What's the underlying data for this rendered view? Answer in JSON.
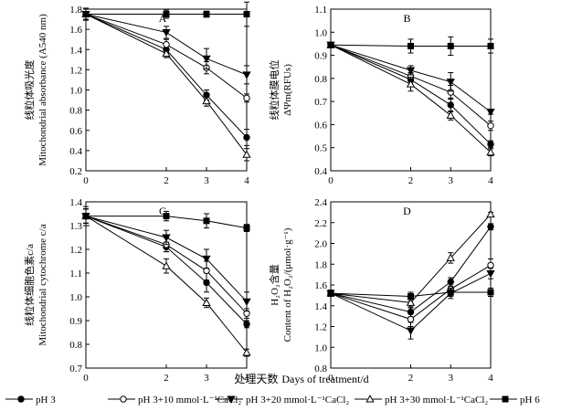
{
  "figure": {
    "x_title_cn": "处理天数",
    "x_title_en": "Days of treatment/d"
  },
  "legend": [
    {
      "key": "s1",
      "label": "pH 3",
      "marker": "circle-filled"
    },
    {
      "key": "s2",
      "label": "pH 3+10 mmol·L⁻¹CaCl₂",
      "marker": "circle-open"
    },
    {
      "key": "s3",
      "label": "pH 3+20 mmol·L⁻¹CaCl₂",
      "marker": "triangle-down-filled"
    },
    {
      "key": "s4",
      "label": "pH 3+30 mmol·L⁻¹CaCl₂",
      "marker": "triangle-up-open"
    },
    {
      "key": "s5",
      "label": "pH 6",
      "marker": "square-filled"
    }
  ],
  "chart_data": [
    {
      "id": "A",
      "type": "line",
      "title": "A",
      "ylabel_cn": "线粒体吸光度",
      "ylabel_en": "Mitochondrial absorbance (A540 nm)",
      "x": [
        0,
        2,
        3,
        4
      ],
      "xlim": [
        0,
        4
      ],
      "ylim": [
        0.2,
        1.8
      ],
      "yticks": [
        0.2,
        0.4,
        0.6,
        0.8,
        1.0,
        1.2,
        1.4,
        1.6,
        1.8
      ],
      "ytick_labels": [
        "0.2",
        "0.4",
        "0.6",
        "0.8",
        "1.0",
        "1.2",
        "1.4",
        "1.6",
        "1.8"
      ],
      "xtick_labels": [
        "0",
        "2",
        "3",
        "4"
      ],
      "series": [
        {
          "key": "s1",
          "name": "pH 3",
          "values": [
            1.75,
            1.4,
            0.95,
            0.53
          ],
          "errors": [
            0.05,
            0.04,
            0.05,
            0.08
          ]
        },
        {
          "key": "s2",
          "name": "pH 3+10 mmol·L⁻¹CaCl₂",
          "values": [
            1.75,
            1.45,
            1.22,
            0.92
          ],
          "errors": [
            0.05,
            0.05,
            0.06,
            0.04
          ]
        },
        {
          "key": "s3",
          "name": "pH 3+20 mmol·L⁻¹CaCl₂",
          "values": [
            1.75,
            1.57,
            1.31,
            1.15
          ],
          "errors": [
            0.05,
            0.06,
            0.1,
            0.09
          ]
        },
        {
          "key": "s4",
          "name": "pH 3+30 mmol·L⁻¹CaCl₂",
          "values": [
            1.75,
            1.36,
            0.89,
            0.36
          ],
          "errors": [
            0.05,
            0.04,
            0.05,
            0.06
          ]
        },
        {
          "key": "s5",
          "name": "pH 6",
          "values": [
            1.75,
            1.75,
            1.75,
            1.75
          ],
          "errors": [
            0.06,
            0.04,
            0.03,
            0.12
          ]
        }
      ]
    },
    {
      "id": "B",
      "type": "line",
      "title": "B",
      "ylabel_cn": "线粒体膜电位",
      "ylabel_en": "ΔΨm(RFUs)",
      "x": [
        0,
        2,
        3,
        4
      ],
      "xlim": [
        0,
        4
      ],
      "ylim": [
        0.4,
        1.1
      ],
      "yticks": [
        0.4,
        0.5,
        0.6,
        0.7,
        0.8,
        0.9,
        1.0,
        1.1
      ],
      "ytick_labels": [
        "0.4",
        "0.5",
        "0.6",
        "0.7",
        "0.8",
        "0.9",
        "1.0",
        "1.1"
      ],
      "xtick_labels": [
        "0",
        "2",
        "3",
        "4"
      ],
      "series": [
        {
          "key": "s1",
          "name": "pH 3",
          "values": [
            0.945,
            0.795,
            0.685,
            0.515
          ],
          "errors": [
            0.01,
            0.03,
            0.03,
            0.015
          ]
        },
        {
          "key": "s2",
          "name": "pH 3+10 mmol·L⁻¹CaCl₂",
          "values": [
            0.945,
            0.81,
            0.74,
            0.595
          ],
          "errors": [
            0.01,
            0.03,
            0.03,
            0.02
          ]
        },
        {
          "key": "s3",
          "name": "pH 3+20 mmol·L⁻¹CaCl₂",
          "values": [
            0.945,
            0.835,
            0.785,
            0.655
          ],
          "errors": [
            0.01,
            0.02,
            0.04,
            0.01
          ]
        },
        {
          "key": "s4",
          "name": "pH 3+30 mmol·L⁻¹CaCl₂",
          "values": [
            0.945,
            0.775,
            0.64,
            0.48
          ],
          "errors": [
            0.01,
            0.03,
            0.02,
            0.015
          ]
        },
        {
          "key": "s5",
          "name": "pH 6",
          "values": [
            0.945,
            0.94,
            0.94,
            0.94
          ],
          "errors": [
            0.01,
            0.03,
            0.04,
            0.03
          ]
        }
      ]
    },
    {
      "id": "C",
      "type": "line",
      "title": "C",
      "ylabel_cn": "线粒体细胞色素c/a",
      "ylabel_en": "Mitochondrial cytochrome c/a",
      "x": [
        0,
        2,
        3,
        4
      ],
      "xlim": [
        0,
        4
      ],
      "ylim": [
        0.7,
        1.4
      ],
      "yticks": [
        0.7,
        0.8,
        0.9,
        1.0,
        1.1,
        1.2,
        1.3,
        1.4
      ],
      "ytick_labels": [
        "0.7",
        "0.8",
        "0.9",
        "1.0",
        "1.1",
        "1.2",
        "1.3",
        "1.4"
      ],
      "xtick_labels": [
        "0",
        "2",
        "3",
        "4"
      ],
      "series": [
        {
          "key": "s1",
          "name": "pH 3",
          "values": [
            1.34,
            1.21,
            1.06,
            0.885
          ],
          "errors": [
            0.03,
            0.02,
            0.04,
            0.015
          ]
        },
        {
          "key": "s2",
          "name": "pH 3+10 mmol·L⁻¹CaCl₂",
          "values": [
            1.34,
            1.22,
            1.11,
            0.93
          ],
          "errors": [
            0.03,
            0.03,
            0.04,
            0.02
          ]
        },
        {
          "key": "s3",
          "name": "pH 3+20 mmol·L⁻¹CaCl₂",
          "values": [
            1.34,
            1.25,
            1.16,
            0.98
          ],
          "errors": [
            0.03,
            0.03,
            0.04,
            0.04
          ]
        },
        {
          "key": "s4",
          "name": "pH 3+30 mmol·L⁻¹CaCl₂",
          "values": [
            1.34,
            1.13,
            0.975,
            0.765
          ],
          "errors": [
            0.03,
            0.03,
            0.02,
            0.015
          ]
        },
        {
          "key": "s5",
          "name": "pH 6",
          "values": [
            1.34,
            1.34,
            1.32,
            1.29
          ],
          "errors": [
            0.04,
            0.02,
            0.03,
            0.015
          ]
        }
      ]
    },
    {
      "id": "D",
      "type": "line",
      "title": "D",
      "ylabel_cn": "H₂O₂含量",
      "ylabel_en": "Content of H₂O₂/(μmol·g⁻¹)",
      "x": [
        0,
        2,
        3,
        4
      ],
      "xlim": [
        0,
        4
      ],
      "ylim": [
        0.8,
        2.4
      ],
      "yticks": [
        0.8,
        1.0,
        1.2,
        1.4,
        1.6,
        1.8,
        2.0,
        2.2,
        2.4
      ],
      "ytick_labels": [
        "0.8",
        "1.0",
        "1.2",
        "1.4",
        "1.6",
        "1.8",
        "2.0",
        "2.2",
        "2.4"
      ],
      "xtick_labels": [
        "0",
        "2",
        "3",
        "4"
      ],
      "series": [
        {
          "key": "s1",
          "name": "pH 3",
          "values": [
            1.52,
            1.34,
            1.63,
            2.16
          ],
          "errors": [
            0.03,
            0.05,
            0.04,
            0.03
          ]
        },
        {
          "key": "s2",
          "name": "pH 3+10 mmol·L⁻¹CaCl₂",
          "values": [
            1.52,
            1.27,
            1.56,
            1.79
          ],
          "errors": [
            0.03,
            0.07,
            0.06,
            0.06
          ]
        },
        {
          "key": "s3",
          "name": "pH 3+20 mmol·L⁻¹CaCl₂",
          "values": [
            1.52,
            1.16,
            1.52,
            1.71
          ],
          "errors": [
            0.03,
            0.08,
            0.05,
            0.05
          ]
        },
        {
          "key": "s4",
          "name": "pH 3+30 mmol·L⁻¹CaCl₂",
          "values": [
            1.52,
            1.43,
            1.86,
            2.28
          ],
          "errors": [
            0.03,
            0.05,
            0.05,
            0.02
          ]
        },
        {
          "key": "s5",
          "name": "pH 6",
          "values": [
            1.52,
            1.49,
            1.53,
            1.53
          ],
          "errors": [
            0.03,
            0.04,
            0.04,
            0.04
          ]
        }
      ]
    }
  ]
}
